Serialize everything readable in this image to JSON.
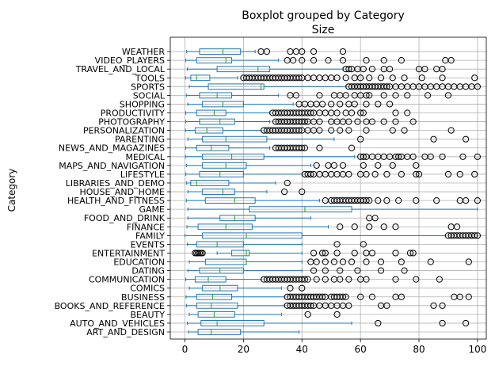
{
  "chart_data": {
    "type": "boxplot",
    "title": "Boxplot grouped by Category",
    "subtitle": "Size",
    "xlabel": "",
    "ylabel": "Category",
    "xlim": [
      -5,
      103
    ],
    "xticks": [
      0,
      20,
      40,
      60,
      80,
      100
    ],
    "grid": true,
    "colors": {
      "box": "#1f77b4",
      "median": "#2ca02c",
      "outlier": "#000000",
      "grid": "#b0b0b0"
    },
    "categories": [
      "ART_AND_DESIGN",
      "AUTO_AND_VEHICLES",
      "BEAUTY",
      "BOOKS_AND_REFERENCE",
      "BUSINESS",
      "COMICS",
      "COMMUNICATION",
      "DATING",
      "EDUCATION",
      "ENTERTAINMENT",
      "EVENTS",
      "FAMILY",
      "FINANCE",
      "FOOD_AND_DRINK",
      "GAME",
      "HEALTH_AND_FITNESS",
      "HOUSE_AND_HOME",
      "LIBRARIES_AND_DEMO",
      "LIFESTYLE",
      "MAPS_AND_NAVIGATION",
      "MEDICAL",
      "NEWS_AND_MAGAZINES",
      "PARENTING",
      "PERSONALIZATION",
      "PHOTOGRAPHY",
      "PRODUCTIVITY",
      "SHOPPING",
      "SOCIAL",
      "SPORTS",
      "TOOLS",
      "TRAVEL_AND_LOCAL",
      "VIDEO_PLAYERS",
      "WEATHER"
    ],
    "boxes": [
      {
        "min": 1.2,
        "q1": 4.5,
        "median": 9,
        "q3": 19,
        "max": 39,
        "outliers": []
      },
      {
        "min": 0.8,
        "q1": 5.5,
        "median": 11,
        "q3": 27,
        "max": 57,
        "outliers": [
          66,
          88,
          96
        ]
      },
      {
        "min": 1.5,
        "q1": 4.5,
        "median": 10,
        "q3": 17,
        "max": 33,
        "outliers": [
          42,
          52
        ]
      },
      {
        "min": 0.5,
        "q1": 4,
        "median": 9,
        "q3": 18,
        "max": 34,
        "outliers": [
          35,
          36,
          37,
          38,
          39,
          40,
          41,
          42,
          43,
          44,
          46,
          48,
          50,
          52,
          54,
          56,
          67,
          69,
          85,
          88
        ]
      },
      {
        "min": 0.4,
        "q1": 4,
        "median": 9.5,
        "q3": 16,
        "max": 34,
        "outliers": [
          35,
          36,
          37,
          38,
          39,
          40,
          41,
          42,
          43,
          44,
          45,
          46,
          47,
          48,
          50,
          51,
          52,
          53,
          54,
          55,
          60,
          64,
          72,
          74,
          92,
          94,
          97
        ]
      },
      {
        "min": 1.5,
        "q1": 6,
        "median": 12,
        "q3": 18,
        "max": 33,
        "outliers": [
          36,
          40
        ]
      },
      {
        "min": 0.3,
        "q1": 3.5,
        "median": 8,
        "q3": 14,
        "max": 26,
        "outliers": [
          27,
          28,
          29,
          30,
          31,
          32,
          33,
          34,
          35,
          36,
          37,
          38,
          39,
          40,
          41,
          42,
          45,
          48,
          51,
          53,
          56,
          60,
          62,
          72,
          79,
          87
        ]
      },
      {
        "min": 1,
        "q1": 5,
        "median": 12,
        "q3": 20,
        "max": 40,
        "outliers": [
          44,
          48,
          53,
          59,
          67,
          75
        ]
      },
      {
        "min": 1.5,
        "q1": 7,
        "median": 21,
        "q3": 21,
        "max": 40,
        "outliers": [
          43,
          45,
          48,
          51,
          54,
          57,
          62,
          67,
          74,
          84,
          97
        ]
      },
      {
        "min": 11,
        "q1": 16,
        "median": 21,
        "q3": 22,
        "max": 40,
        "outliers": [
          3.5,
          4,
          4.5,
          5,
          5.5,
          6,
          44,
          47,
          48,
          52,
          58,
          62,
          64,
          72,
          77,
          78
        ]
      },
      {
        "min": 0.8,
        "q1": 4,
        "median": 11,
        "q3": 20,
        "max": 40,
        "outliers": [
          52,
          61
        ]
      },
      {
        "min": 0.01,
        "q1": 6,
        "median": 21,
        "q3": 40,
        "max": 89,
        "outliers": [
          90,
          91,
          92,
          93,
          94,
          95,
          96,
          97,
          98,
          99,
          100
        ]
      },
      {
        "min": 0.7,
        "q1": 4.5,
        "median": 14,
        "q3": 23,
        "max": 49,
        "outliers": [
          53,
          58,
          63,
          68,
          72,
          91,
          93
        ]
      },
      {
        "min": 1,
        "q1": 12,
        "median": 17,
        "q3": 24,
        "max": 43,
        "outliers": [
          63,
          65
        ]
      },
      {
        "min": 1,
        "q1": 22,
        "median": 41,
        "q3": 57,
        "max": 100,
        "outliers": []
      },
      {
        "min": 0.5,
        "q1": 7,
        "median": 17,
        "q3": 24,
        "max": 46,
        "outliers": [
          48,
          50,
          51,
          52,
          53,
          54,
          55,
          56,
          57,
          58,
          59,
          60,
          61,
          62,
          63,
          66,
          69,
          73,
          79,
          86,
          94,
          96,
          100
        ]
      },
      {
        "min": 1,
        "q1": 6,
        "median": 13,
        "q3": 17,
        "max": 28,
        "outliers": [
          34,
          40
        ]
      },
      {
        "min": 0.5,
        "q1": 2,
        "median": 4,
        "q3": 15,
        "max": 31,
        "outliers": [
          35
        ]
      },
      {
        "min": 0.3,
        "q1": 5,
        "median": 12,
        "q3": 20,
        "max": 40,
        "outliers": [
          41,
          42,
          43,
          44,
          46,
          48,
          50,
          52,
          54,
          56,
          60,
          62,
          65,
          69,
          74,
          79,
          80,
          90,
          94,
          99
        ]
      },
      {
        "min": 0.5,
        "q1": 6,
        "median": 14,
        "q3": 21,
        "max": 43,
        "outliers": [
          45,
          49,
          51,
          54,
          61,
          66,
          71,
          79
        ]
      },
      {
        "min": 0.2,
        "q1": 6,
        "median": 16,
        "q3": 27,
        "max": 58,
        "outliers": [
          60,
          61,
          62,
          64,
          66,
          68,
          70,
          72,
          73,
          74,
          76,
          78,
          82,
          84,
          88,
          95,
          100
        ]
      },
      {
        "min": 0.3,
        "q1": 4,
        "median": 9,
        "q3": 15,
        "max": 29,
        "outliers": [
          31,
          32,
          33,
          34,
          35,
          36,
          37,
          38,
          39,
          40,
          41,
          46,
          57
        ]
      },
      {
        "min": 1,
        "q1": 6,
        "median": 14,
        "q3": 28,
        "max": 51,
        "outliers": [
          60,
          85,
          96
        ]
      },
      {
        "min": 0.2,
        "q1": 3.5,
        "median": 7.5,
        "q3": 13,
        "max": 26,
        "outliers": [
          27,
          28,
          29,
          30,
          31,
          32,
          33,
          34,
          35,
          36,
          37,
          38,
          39,
          40,
          42,
          44,
          46,
          50,
          53,
          56,
          62,
          71,
          75,
          91
        ]
      },
      {
        "min": 0.3,
        "q1": 5,
        "median": 12,
        "q3": 17,
        "max": 29,
        "outliers": [
          31,
          32,
          33,
          34,
          35,
          36,
          37,
          38,
          39,
          40,
          41,
          42,
          44,
          46,
          50,
          52,
          54,
          56,
          59,
          62,
          64,
          68,
          72,
          78
        ]
      },
      {
        "min": 0.3,
        "q1": 4,
        "median": 10,
        "q3": 14,
        "max": 29,
        "outliers": [
          30,
          31,
          32,
          33,
          34,
          35,
          36,
          37,
          38,
          39,
          40,
          41,
          42,
          43,
          44,
          46,
          48,
          50,
          52,
          55,
          57,
          60,
          61,
          72,
          76
        ]
      },
      {
        "min": 1,
        "q1": 6,
        "median": 13,
        "q3": 20,
        "max": 37,
        "outliers": [
          39,
          41,
          43,
          45,
          47,
          50,
          53,
          56,
          58,
          62,
          66,
          70
        ]
      },
      {
        "min": 0.5,
        "q1": 5,
        "median": 11,
        "q3": 16,
        "max": 32,
        "outliers": [
          36,
          38,
          46,
          51,
          53,
          55,
          58,
          60,
          62,
          63,
          68,
          72,
          76,
          83,
          90
        ]
      },
      {
        "min": 1.5,
        "q1": 8,
        "median": 26,
        "q3": 27,
        "max": 55,
        "outliers": [
          56,
          57,
          58,
          59,
          60,
          61,
          62,
          63,
          64,
          65,
          66,
          67,
          68,
          69,
          70,
          72,
          74,
          76,
          78,
          80,
          82,
          84,
          86,
          88,
          90,
          92,
          94,
          96,
          98,
          100
        ]
      },
      {
        "min": 0.2,
        "q1": 2,
        "median": 4,
        "q3": 8.5,
        "max": 18,
        "outliers": [
          20,
          21,
          22,
          23,
          24,
          25,
          26,
          27,
          28,
          29,
          30,
          31,
          32,
          33,
          34,
          35,
          36,
          37,
          38,
          39,
          40,
          42,
          44,
          46,
          48,
          50,
          52,
          55,
          58,
          60,
          63,
          67,
          71,
          75,
          81,
          88,
          99
        ]
      },
      {
        "min": 0.8,
        "q1": 11,
        "median": 25,
        "q3": 29,
        "max": 54,
        "outliers": [
          55,
          56,
          57,
          59,
          61,
          64,
          68,
          70,
          80,
          82,
          86,
          88
        ]
      },
      {
        "min": 0.3,
        "q1": 4,
        "median": 14,
        "q3": 16,
        "max": 32,
        "outliers": [
          35,
          37,
          40,
          44,
          49,
          54,
          62,
          68,
          74,
          89,
          91
        ]
      },
      {
        "min": 0.6,
        "q1": 5,
        "median": 13,
        "q3": 19,
        "max": 24,
        "outliers": [
          26,
          28,
          36,
          38,
          40,
          44,
          54
        ]
      }
    ]
  }
}
